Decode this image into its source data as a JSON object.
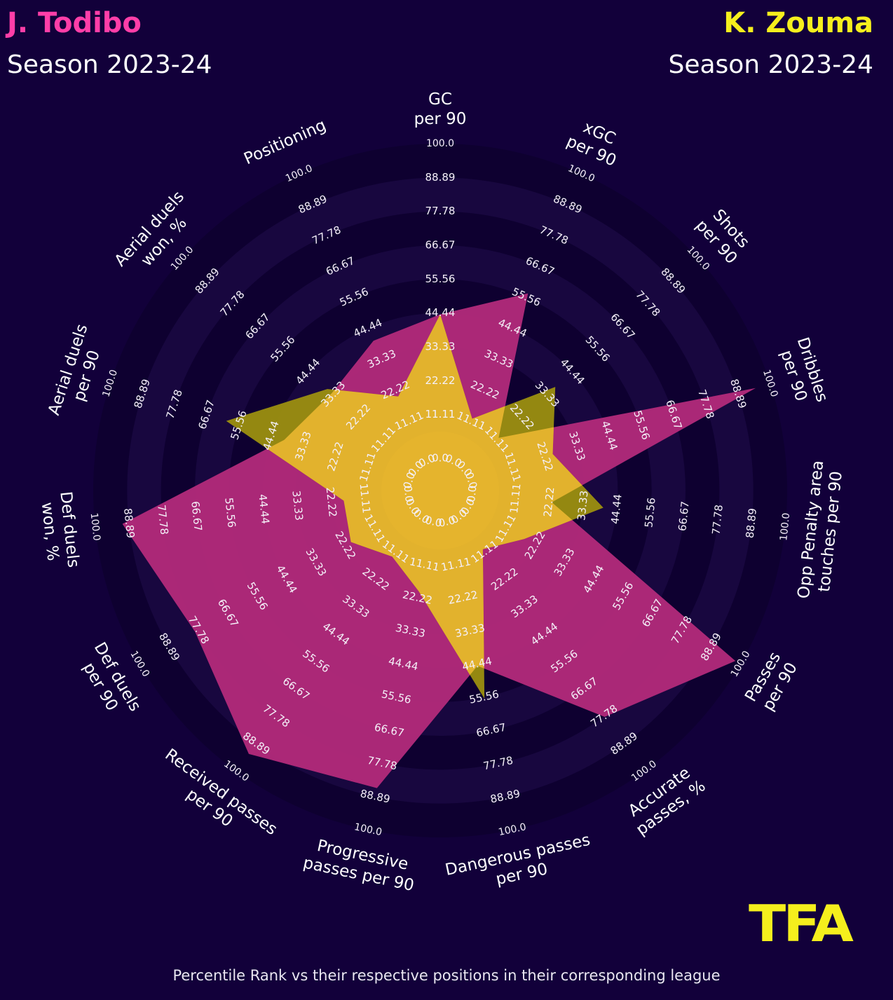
{
  "header": {
    "player1_name": "J. Todibo",
    "player1_season": "Season 2023-24",
    "player2_name": "K. Zouma",
    "player2_season": "Season 2023-24"
  },
  "footnote": "Percentile Rank vs their respective positions in their corresponding league",
  "logo_text": "TFA",
  "colors": {
    "background": "#12003a",
    "player1": "#ff3ea8",
    "player1_fill": "#b12a7a",
    "player2": "#f5ef1d",
    "player2_fill": "#e6b42e",
    "overlap_fill": "#a58a2e",
    "ring_dark": "#0e0030",
    "ring_light": "#18073f"
  },
  "chart_data": {
    "type": "radar",
    "range": [
      0,
      100
    ],
    "ring_labels": [
      "0.0",
      "11.11",
      "22.22",
      "33.33",
      "44.44",
      "55.56",
      "66.67",
      "77.78",
      "88.89",
      "100.0"
    ],
    "axes": [
      "GC\nper 90",
      "xGC\nper 90",
      "Shots\nper 90",
      "Dribbles\nper 90",
      "Opp Penalty area\ntouches per 90",
      "Passes\nper 90",
      "Accurate\npasses, %",
      "Dangerous passes\nper 90",
      "Progressive\npasses per 90",
      "Received passes\nper 90",
      "Def duels\nper 90",
      "Def duels\nwon, %",
      "Aerial duels\nper 90",
      "Aerial duels\nwon, %",
      "Positioning"
    ],
    "series": [
      {
        "name": "J. Todibo",
        "values": [
          44,
          57,
          12,
          95,
          23,
          98,
          78,
          45,
          86,
          93,
          79,
          91,
          40,
          34,
          40
        ]
      },
      {
        "name": "K. Zouma",
        "values": [
          44,
          12,
          37,
          25,
          40,
          18,
          10,
          56,
          20,
          13,
          20,
          18,
          60,
          36,
          20
        ]
      }
    ]
  }
}
